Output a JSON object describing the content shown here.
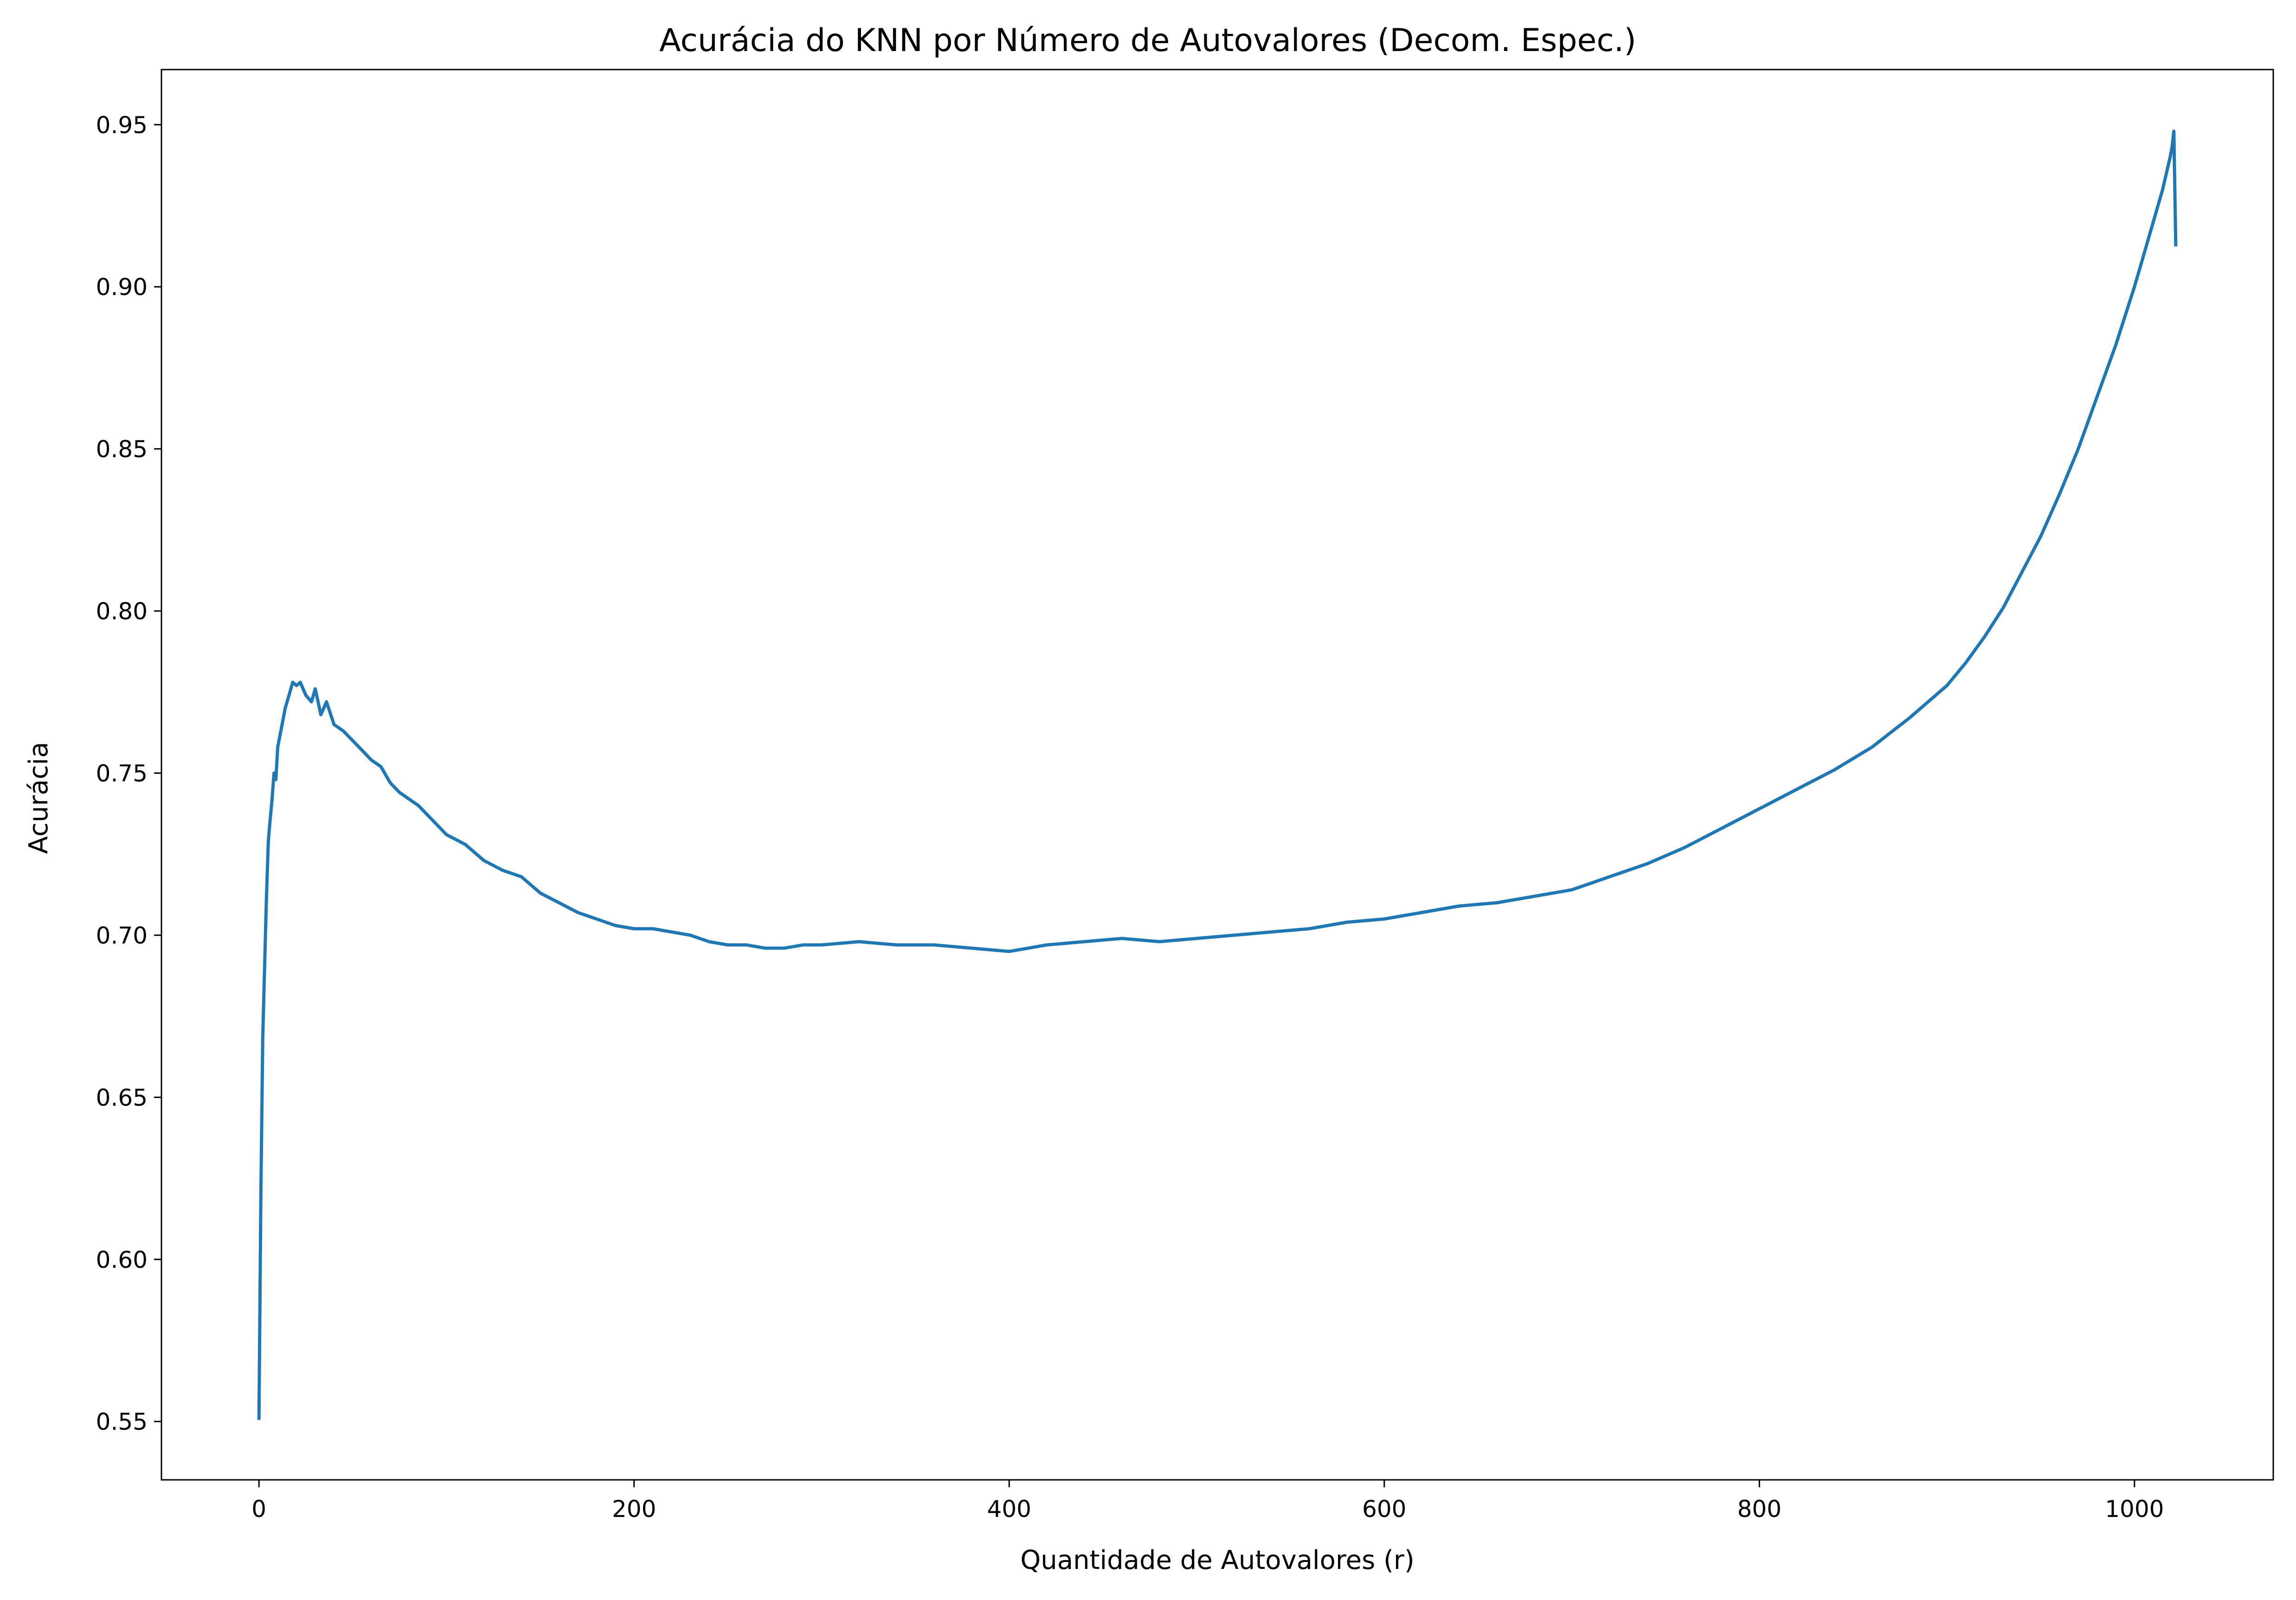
{
  "chart_data": {
    "type": "line",
    "title": "Acurácia do KNN por Número de Autovalores (Decom. Espec.)",
    "xlabel": "Quantidade de Autovalores (r)",
    "ylabel": "Acurácia",
    "xlim": [
      -52,
      1074
    ],
    "ylim": [
      0.532,
      0.967
    ],
    "xticks": [
      0,
      200,
      400,
      600,
      800,
      1000
    ],
    "xtick_labels": [
      "0",
      "200",
      "400",
      "600",
      "800",
      "1000"
    ],
    "yticks": [
      0.55,
      0.6,
      0.65,
      0.7,
      0.75,
      0.8,
      0.85,
      0.9,
      0.95
    ],
    "ytick_labels": [
      "0.55",
      "0.60",
      "0.65",
      "0.70",
      "0.75",
      "0.80",
      "0.85",
      "0.90",
      "0.95"
    ],
    "grid": false,
    "series": [
      {
        "color": "#1f77b4",
        "x": [
          0,
          1,
          2,
          3,
          4,
          5,
          6,
          7,
          8,
          9,
          10,
          12,
          14,
          16,
          18,
          20,
          22,
          25,
          28,
          30,
          33,
          36,
          40,
          45,
          50,
          55,
          60,
          65,
          70,
          75,
          80,
          85,
          90,
          95,
          100,
          110,
          120,
          130,
          140,
          150,
          160,
          170,
          180,
          190,
          200,
          210,
          220,
          230,
          240,
          250,
          260,
          270,
          280,
          290,
          300,
          320,
          340,
          360,
          380,
          400,
          420,
          440,
          460,
          480,
          500,
          520,
          540,
          560,
          580,
          600,
          620,
          640,
          660,
          680,
          700,
          720,
          740,
          760,
          780,
          800,
          820,
          840,
          860,
          880,
          900,
          910,
          920,
          930,
          940,
          950,
          960,
          970,
          980,
          990,
          1000,
          1005,
          1010,
          1015,
          1019,
          1020,
          1021,
          1022
        ],
        "y": [
          0.551,
          0.62,
          0.668,
          0.69,
          0.712,
          0.729,
          0.736,
          0.742,
          0.75,
          0.748,
          0.758,
          0.764,
          0.77,
          0.774,
          0.778,
          0.777,
          0.778,
          0.774,
          0.772,
          0.776,
          0.768,
          0.772,
          0.765,
          0.763,
          0.76,
          0.757,
          0.754,
          0.752,
          0.747,
          0.744,
          0.742,
          0.74,
          0.737,
          0.734,
          0.731,
          0.728,
          0.723,
          0.72,
          0.718,
          0.713,
          0.71,
          0.707,
          0.705,
          0.703,
          0.702,
          0.702,
          0.701,
          0.7,
          0.698,
          0.697,
          0.697,
          0.696,
          0.696,
          0.697,
          0.697,
          0.698,
          0.697,
          0.697,
          0.696,
          0.695,
          0.697,
          0.698,
          0.699,
          0.698,
          0.699,
          0.7,
          0.701,
          0.702,
          0.704,
          0.705,
          0.707,
          0.709,
          0.71,
          0.712,
          0.714,
          0.718,
          0.722,
          0.727,
          0.733,
          0.739,
          0.745,
          0.751,
          0.758,
          0.767,
          0.777,
          0.784,
          0.792,
          0.801,
          0.812,
          0.823,
          0.836,
          0.85,
          0.866,
          0.882,
          0.9,
          0.91,
          0.92,
          0.93,
          0.94,
          0.943,
          0.948,
          0.913
        ]
      }
    ]
  }
}
